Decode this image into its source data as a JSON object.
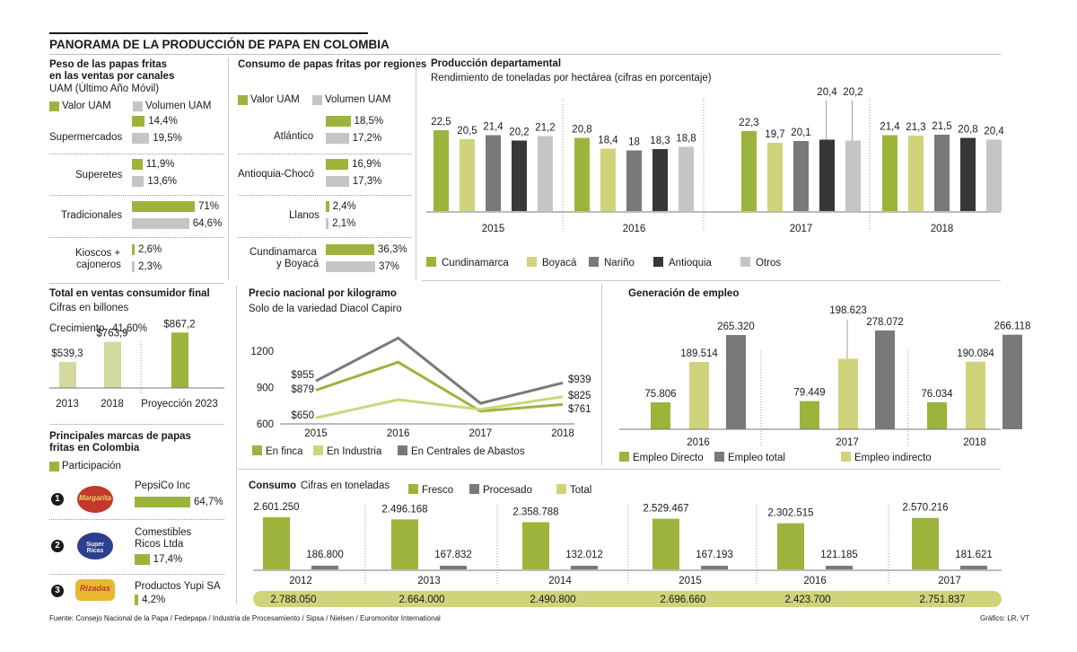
{
  "title": "PANORAMA DE LA PRODUCCIÓN DE PAPA EN COLOMBIA",
  "colors": {
    "green": "#9cb43c",
    "lightgreen": "#cfd47a",
    "lightgray": "#c5c5c5",
    "gray": "#7a7878",
    "dark": "#383636",
    "palegreen": "#d4d9a0"
  },
  "canales": {
    "title_line1": "Peso de las papas fritas",
    "title_line2": "en las ventas por canales",
    "title_line3": "UAM (Último Año Móvil)",
    "legend": {
      "valor": "Valor UAM",
      "volumen": "Volumen UAM"
    },
    "rows": [
      {
        "label": "Supermercados",
        "valor": 14.4,
        "valor_label": "14,4%",
        "volumen": 19.5,
        "volumen_label": "19,5%"
      },
      {
        "label": "Superetes",
        "valor": 11.9,
        "valor_label": "11,9%",
        "volumen": 13.6,
        "volumen_label": "13,6%"
      },
      {
        "label": "Tradicionales",
        "valor": 71,
        "valor_label": "71%",
        "volumen": 64.6,
        "volumen_label": "64,6%"
      },
      {
        "label_line1": "Kioscos +",
        "label_line2": "cajoneros",
        "valor": 2.6,
        "valor_label": "2,6%",
        "volumen": 2.3,
        "volumen_label": "2,3%"
      }
    ]
  },
  "regiones": {
    "title": "Consumo de papas fritas por regiones",
    "legend": {
      "valor": "Valor UAM",
      "volumen": "Volumen UAM"
    },
    "rows": [
      {
        "label": "Atlántico",
        "valor": 18.5,
        "valor_label": "18,5%",
        "volumen": 17.2,
        "volumen_label": "17,2%"
      },
      {
        "label": "Antioquia-Chocó",
        "valor": 16.9,
        "valor_label": "16,9%",
        "volumen": 17.3,
        "volumen_label": "17,3%"
      },
      {
        "label": "Llanos",
        "valor": 2.4,
        "valor_label": "2,4%",
        "volumen": 2.1,
        "volumen_label": "2,1%"
      },
      {
        "label_line1": "Cundinamarca",
        "label_line2": "y Boyacá",
        "valor": 36.3,
        "valor_label": "36,3%",
        "volumen": 37,
        "volumen_label": "37%"
      }
    ]
  },
  "departamental": {
    "title": "Producción departamental",
    "subtitle": "Rendimiento de toneladas por hectárea (cifras en porcentaje)",
    "years": [
      "2015",
      "2016",
      "2017",
      "2018"
    ],
    "series": [
      "Cundinamarca",
      "Boyacá",
      "Nariño",
      "Antioquia",
      "Otros"
    ],
    "values": [
      [
        22.5,
        20.5,
        21.4,
        20.2,
        21.2
      ],
      [
        20.8,
        18.4,
        18,
        18.3,
        18.8
      ],
      [
        22.3,
        19.7,
        20.1,
        20.4,
        20.2
      ],
      [
        21.4,
        21.3,
        21.5,
        20.8,
        20.4
      ]
    ],
    "labels": [
      [
        "22,5",
        "20,5",
        "21,4",
        "20,2",
        "21,2"
      ],
      [
        "20,8",
        "18,4",
        "18",
        "18,3",
        "18,8"
      ],
      [
        "22,3",
        "19,7",
        "20,1",
        "20,4",
        "20,2"
      ],
      [
        "21,4",
        "21,3",
        "21,5",
        "20,8",
        "20,4"
      ]
    ]
  },
  "ventas": {
    "title": "Total en ventas consumidor final",
    "subtitle": "Cifras en billones",
    "growth_label": "Crecimiento",
    "growth_value": "41,60%",
    "items": [
      {
        "label": "2013",
        "value": 539.3,
        "value_label": "$539,3"
      },
      {
        "label": "2018",
        "value": 763.9,
        "value_label": "$763,9"
      },
      {
        "label": "Proyección 2023",
        "value": 867.2,
        "value_label": "$867,2"
      }
    ]
  },
  "marcas": {
    "title_line1": "Principales marcas de papas",
    "title_line2": "fritas en Colombia",
    "legend": "Participación",
    "items": [
      {
        "rank": "1",
        "name_line1": "PepsiCo Inc",
        "name_line2": "",
        "value": 64.7,
        "value_label": "64,7%",
        "logo_text": "Margarita"
      },
      {
        "rank": "2",
        "name_line1": "Comestibles",
        "name_line2": "Ricos Ltda",
        "value": 17.4,
        "value_label": "17,4%",
        "logo_text": "Super Ricas"
      },
      {
        "rank": "3",
        "name_line1": "Productos Yupi SA",
        "name_line2": "",
        "value": 4.2,
        "value_label": "4,2%",
        "logo_text": "Rizadas"
      }
    ]
  },
  "chart_data": [
    {
      "type": "line",
      "title": "Precio nacional por kilogramo",
      "subtitle": "Solo de la variedad Diacol Capiro",
      "x": [
        "2015",
        "2016",
        "2017",
        "2018"
      ],
      "ylim": [
        600,
        1350
      ],
      "yticks": [
        "600",
        "900",
        "1200"
      ],
      "series": [
        {
          "name": "En finca",
          "values": [
            879,
            1110,
            705,
            761
          ]
        },
        {
          "name": "En Industria",
          "values": [
            650,
            800,
            720,
            825
          ]
        },
        {
          "name": "En Centrales de Abastos",
          "values": [
            955,
            1310,
            770,
            939
          ]
        }
      ],
      "data_labels": {
        "start": [
          "$879",
          "$650",
          "$955"
        ],
        "end": [
          "$761",
          "$825",
          "$939"
        ]
      }
    },
    {
      "type": "bar",
      "title": "Generación de empleo",
      "categories": [
        "2016",
        "2017",
        "2018"
      ],
      "series": [
        {
          "name": "Empleo Directo",
          "values": [
            75806,
            79449,
            76034
          ],
          "labels": [
            "75.806",
            "79.449",
            "76.034"
          ]
        },
        {
          "name": "Empleo indirecto",
          "values": [
            189514,
            198623,
            190084
          ],
          "labels": [
            "189.514",
            "198.623",
            "190.084"
          ]
        },
        {
          "name": "Empleo total",
          "values": [
            265320,
            278072,
            266118
          ],
          "labels": [
            "265.320",
            "278.072",
            "266.118"
          ]
        }
      ]
    },
    {
      "type": "bar",
      "title": "Consumo",
      "subtitle": "Cifras en toneladas",
      "categories": [
        "2012",
        "2013",
        "2014",
        "2015",
        "2016",
        "2017"
      ],
      "series": [
        {
          "name": "Fresco",
          "values": [
            2601250,
            2496168,
            2358788,
            2529467,
            2302515,
            2570216
          ],
          "labels": [
            "2.601.250",
            "2.496.168",
            "2.358.788",
            "2.529.467",
            "2.302.515",
            "2.570.216"
          ]
        },
        {
          "name": "Procesado",
          "values": [
            186800,
            167832,
            132012,
            167193,
            121185,
            181621
          ],
          "labels": [
            "186.800",
            "167.832",
            "132.012",
            "167.193",
            "121.185",
            "181.621"
          ]
        },
        {
          "name": "Total",
          "values": [
            2788050,
            2664000,
            2490800,
            2696660,
            2423700,
            2751837
          ],
          "labels": [
            "2.788.050",
            "2.664.000",
            "2.490.800",
            "2.696.660",
            "2.423.700",
            "2.751.837"
          ]
        }
      ]
    }
  ],
  "footer": {
    "source": "Fuente: Consejo Nacional de la Papa / Fedepapa / Industria de Procesamiento / Sipsa / Nielsen / Euromonitor International",
    "credit": "Gráfico: LR, VT"
  }
}
